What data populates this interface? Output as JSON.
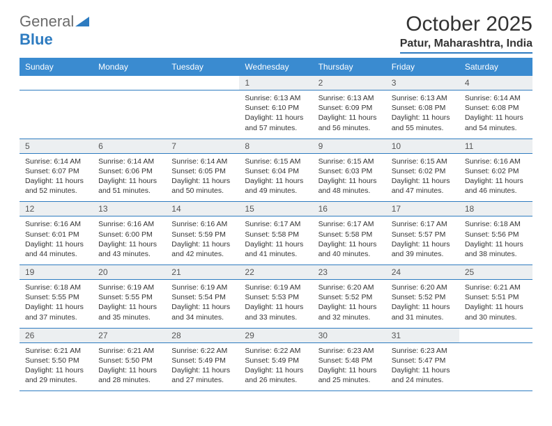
{
  "logo": {
    "word1": "General",
    "word2": "Blue"
  },
  "title": "October 2025",
  "location": "Patur, Maharashtra, India",
  "colors": {
    "header_bg": "#3a8bd0",
    "header_text": "#ffffff",
    "daynum_bg": "#eceff1",
    "rule": "#2d7bc0",
    "logo_gray": "#6b6b6b",
    "logo_blue": "#2d7bc0"
  },
  "day_headers": [
    "Sunday",
    "Monday",
    "Tuesday",
    "Wednesday",
    "Thursday",
    "Friday",
    "Saturday"
  ],
  "weeks": [
    [
      null,
      null,
      null,
      {
        "n": "1",
        "sunrise": "6:13 AM",
        "sunset": "6:10 PM",
        "daylight": "11 hours and 57 minutes."
      },
      {
        "n": "2",
        "sunrise": "6:13 AM",
        "sunset": "6:09 PM",
        "daylight": "11 hours and 56 minutes."
      },
      {
        "n": "3",
        "sunrise": "6:13 AM",
        "sunset": "6:08 PM",
        "daylight": "11 hours and 55 minutes."
      },
      {
        "n": "4",
        "sunrise": "6:14 AM",
        "sunset": "6:08 PM",
        "daylight": "11 hours and 54 minutes."
      }
    ],
    [
      {
        "n": "5",
        "sunrise": "6:14 AM",
        "sunset": "6:07 PM",
        "daylight": "11 hours and 52 minutes."
      },
      {
        "n": "6",
        "sunrise": "6:14 AM",
        "sunset": "6:06 PM",
        "daylight": "11 hours and 51 minutes."
      },
      {
        "n": "7",
        "sunrise": "6:14 AM",
        "sunset": "6:05 PM",
        "daylight": "11 hours and 50 minutes."
      },
      {
        "n": "8",
        "sunrise": "6:15 AM",
        "sunset": "6:04 PM",
        "daylight": "11 hours and 49 minutes."
      },
      {
        "n": "9",
        "sunrise": "6:15 AM",
        "sunset": "6:03 PM",
        "daylight": "11 hours and 48 minutes."
      },
      {
        "n": "10",
        "sunrise": "6:15 AM",
        "sunset": "6:02 PM",
        "daylight": "11 hours and 47 minutes."
      },
      {
        "n": "11",
        "sunrise": "6:16 AM",
        "sunset": "6:02 PM",
        "daylight": "11 hours and 46 minutes."
      }
    ],
    [
      {
        "n": "12",
        "sunrise": "6:16 AM",
        "sunset": "6:01 PM",
        "daylight": "11 hours and 44 minutes."
      },
      {
        "n": "13",
        "sunrise": "6:16 AM",
        "sunset": "6:00 PM",
        "daylight": "11 hours and 43 minutes."
      },
      {
        "n": "14",
        "sunrise": "6:16 AM",
        "sunset": "5:59 PM",
        "daylight": "11 hours and 42 minutes."
      },
      {
        "n": "15",
        "sunrise": "6:17 AM",
        "sunset": "5:58 PM",
        "daylight": "11 hours and 41 minutes."
      },
      {
        "n": "16",
        "sunrise": "6:17 AM",
        "sunset": "5:58 PM",
        "daylight": "11 hours and 40 minutes."
      },
      {
        "n": "17",
        "sunrise": "6:17 AM",
        "sunset": "5:57 PM",
        "daylight": "11 hours and 39 minutes."
      },
      {
        "n": "18",
        "sunrise": "6:18 AM",
        "sunset": "5:56 PM",
        "daylight": "11 hours and 38 minutes."
      }
    ],
    [
      {
        "n": "19",
        "sunrise": "6:18 AM",
        "sunset": "5:55 PM",
        "daylight": "11 hours and 37 minutes."
      },
      {
        "n": "20",
        "sunrise": "6:19 AM",
        "sunset": "5:55 PM",
        "daylight": "11 hours and 35 minutes."
      },
      {
        "n": "21",
        "sunrise": "6:19 AM",
        "sunset": "5:54 PM",
        "daylight": "11 hours and 34 minutes."
      },
      {
        "n": "22",
        "sunrise": "6:19 AM",
        "sunset": "5:53 PM",
        "daylight": "11 hours and 33 minutes."
      },
      {
        "n": "23",
        "sunrise": "6:20 AM",
        "sunset": "5:52 PM",
        "daylight": "11 hours and 32 minutes."
      },
      {
        "n": "24",
        "sunrise": "6:20 AM",
        "sunset": "5:52 PM",
        "daylight": "11 hours and 31 minutes."
      },
      {
        "n": "25",
        "sunrise": "6:21 AM",
        "sunset": "5:51 PM",
        "daylight": "11 hours and 30 minutes."
      }
    ],
    [
      {
        "n": "26",
        "sunrise": "6:21 AM",
        "sunset": "5:50 PM",
        "daylight": "11 hours and 29 minutes."
      },
      {
        "n": "27",
        "sunrise": "6:21 AM",
        "sunset": "5:50 PM",
        "daylight": "11 hours and 28 minutes."
      },
      {
        "n": "28",
        "sunrise": "6:22 AM",
        "sunset": "5:49 PM",
        "daylight": "11 hours and 27 minutes."
      },
      {
        "n": "29",
        "sunrise": "6:22 AM",
        "sunset": "5:49 PM",
        "daylight": "11 hours and 26 minutes."
      },
      {
        "n": "30",
        "sunrise": "6:23 AM",
        "sunset": "5:48 PM",
        "daylight": "11 hours and 25 minutes."
      },
      {
        "n": "31",
        "sunrise": "6:23 AM",
        "sunset": "5:47 PM",
        "daylight": "11 hours and 24 minutes."
      },
      null
    ]
  ],
  "labels": {
    "sunrise": "Sunrise: ",
    "sunset": "Sunset: ",
    "daylight": "Daylight: "
  }
}
